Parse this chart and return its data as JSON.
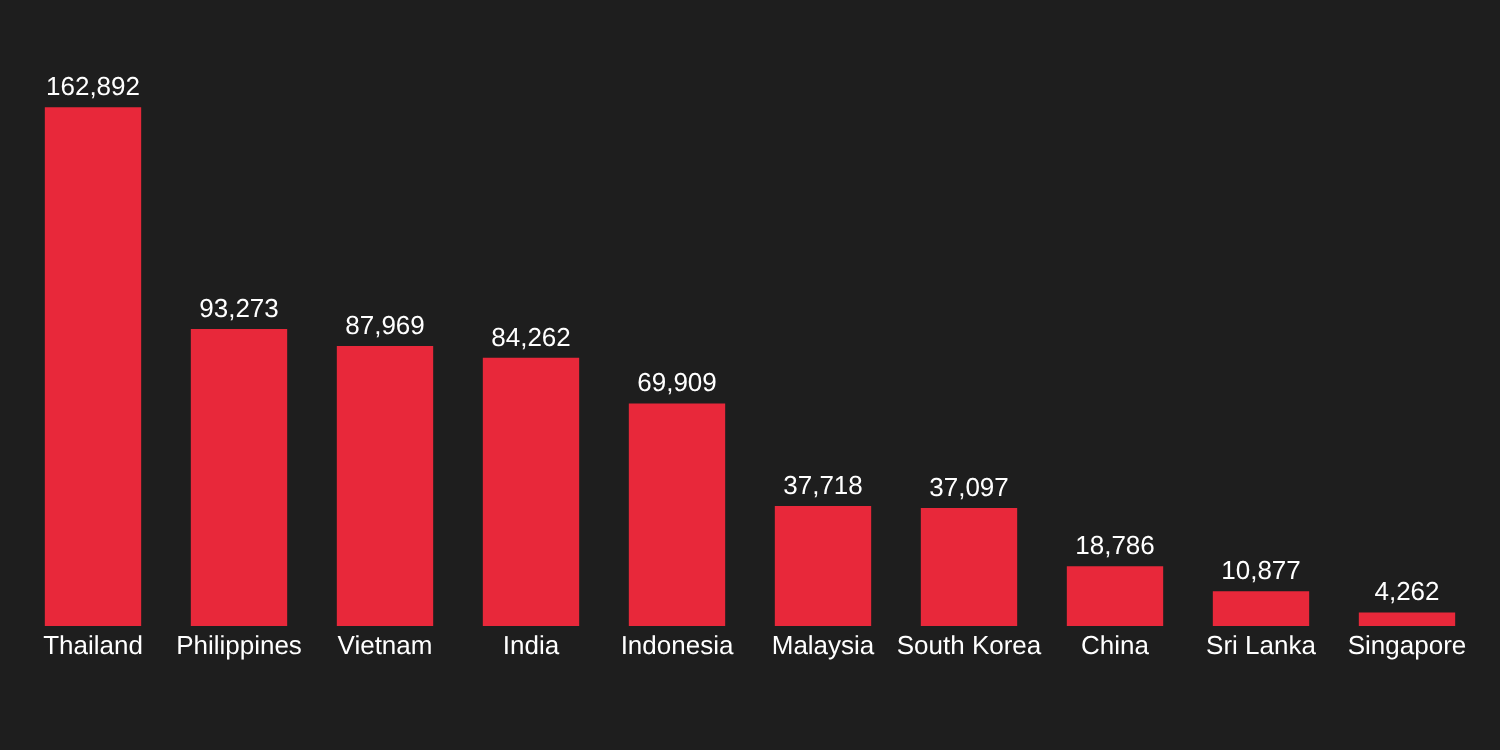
{
  "chart_data": {
    "type": "bar",
    "categories": [
      "Thailand",
      "Philippines",
      "Vietnam",
      "India",
      "Indonesia",
      "Malaysia",
      "South Korea",
      "China",
      "Sri Lanka",
      "Singapore"
    ],
    "values": [
      162892,
      93273,
      87969,
      84262,
      69909,
      37718,
      37097,
      18786,
      10877,
      4262
    ],
    "value_labels": [
      "162,892",
      "93,273",
      "87,969",
      "84,262",
      "69,909",
      "37,718",
      "37,097",
      "18,786",
      "10,877",
      "4,262"
    ],
    "color": "#e8283a"
  }
}
